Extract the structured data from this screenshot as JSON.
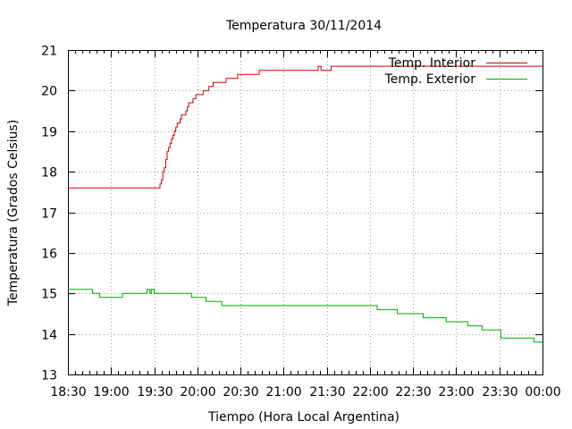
{
  "chart_data": {
    "type": "line",
    "title": "Temperatura 30/11/2014",
    "xlabel": "Tiempo (Hora Local Argentina)",
    "ylabel": "Temperatura (Grados Celsius)",
    "xlim": [
      "18:30",
      "00:00"
    ],
    "ylim": [
      13,
      21
    ],
    "grid": true,
    "legend_position": "top-right",
    "x_ticks": [
      "18:30",
      "19:00",
      "19:30",
      "20:00",
      "20:30",
      "21:00",
      "21:30",
      "22:00",
      "22:30",
      "23:00",
      "23:30",
      "00:00"
    ],
    "y_ticks": [
      "13",
      "14",
      "15",
      "16",
      "17",
      "18",
      "19",
      "20",
      "21"
    ],
    "series": [
      {
        "name": "Temp. Interior",
        "color": "#cc0000",
        "points": [
          [
            "18:30",
            17.6
          ],
          [
            "19:33",
            17.6
          ],
          [
            "19:34",
            17.7
          ],
          [
            "19:35",
            17.8
          ],
          [
            "19:36",
            18.0
          ],
          [
            "19:37",
            18.1
          ],
          [
            "19:38",
            18.3
          ],
          [
            "19:39",
            18.5
          ],
          [
            "19:40",
            18.6
          ],
          [
            "19:41",
            18.7
          ],
          [
            "19:42",
            18.8
          ],
          [
            "19:43",
            18.9
          ],
          [
            "19:44",
            19.0
          ],
          [
            "19:45",
            19.1
          ],
          [
            "19:46",
            19.2
          ],
          [
            "19:48",
            19.3
          ],
          [
            "19:49",
            19.4
          ],
          [
            "19:52",
            19.5
          ],
          [
            "19:53",
            19.6
          ],
          [
            "19:54",
            19.7
          ],
          [
            "19:57",
            19.8
          ],
          [
            "19:59",
            19.9
          ],
          [
            "20:04",
            20.0
          ],
          [
            "20:08",
            20.1
          ],
          [
            "20:11",
            20.2
          ],
          [
            "20:20",
            20.3
          ],
          [
            "20:28",
            20.4
          ],
          [
            "20:43",
            20.5
          ],
          [
            "21:24",
            20.6
          ],
          [
            "21:26",
            20.5
          ],
          [
            "21:33",
            20.6
          ],
          [
            "00:00",
            20.6
          ]
        ]
      },
      {
        "name": "Temp. Exterior",
        "color": "#00aa00",
        "points": [
          [
            "18:30",
            15.1
          ],
          [
            "18:47",
            15.0
          ],
          [
            "18:52",
            14.9
          ],
          [
            "19:08",
            15.0
          ],
          [
            "19:25",
            15.1
          ],
          [
            "19:27",
            15.0
          ],
          [
            "19:28",
            15.1
          ],
          [
            "19:30",
            15.0
          ],
          [
            "19:56",
            14.9
          ],
          [
            "20:06",
            14.8
          ],
          [
            "20:17",
            14.7
          ],
          [
            "22:05",
            14.6
          ],
          [
            "22:19",
            14.5
          ],
          [
            "22:37",
            14.4
          ],
          [
            "22:53",
            14.3
          ],
          [
            "23:08",
            14.2
          ],
          [
            "23:18",
            14.1
          ],
          [
            "23:31",
            13.9
          ],
          [
            "23:54",
            13.8
          ],
          [
            "00:00",
            13.8
          ]
        ]
      }
    ]
  }
}
